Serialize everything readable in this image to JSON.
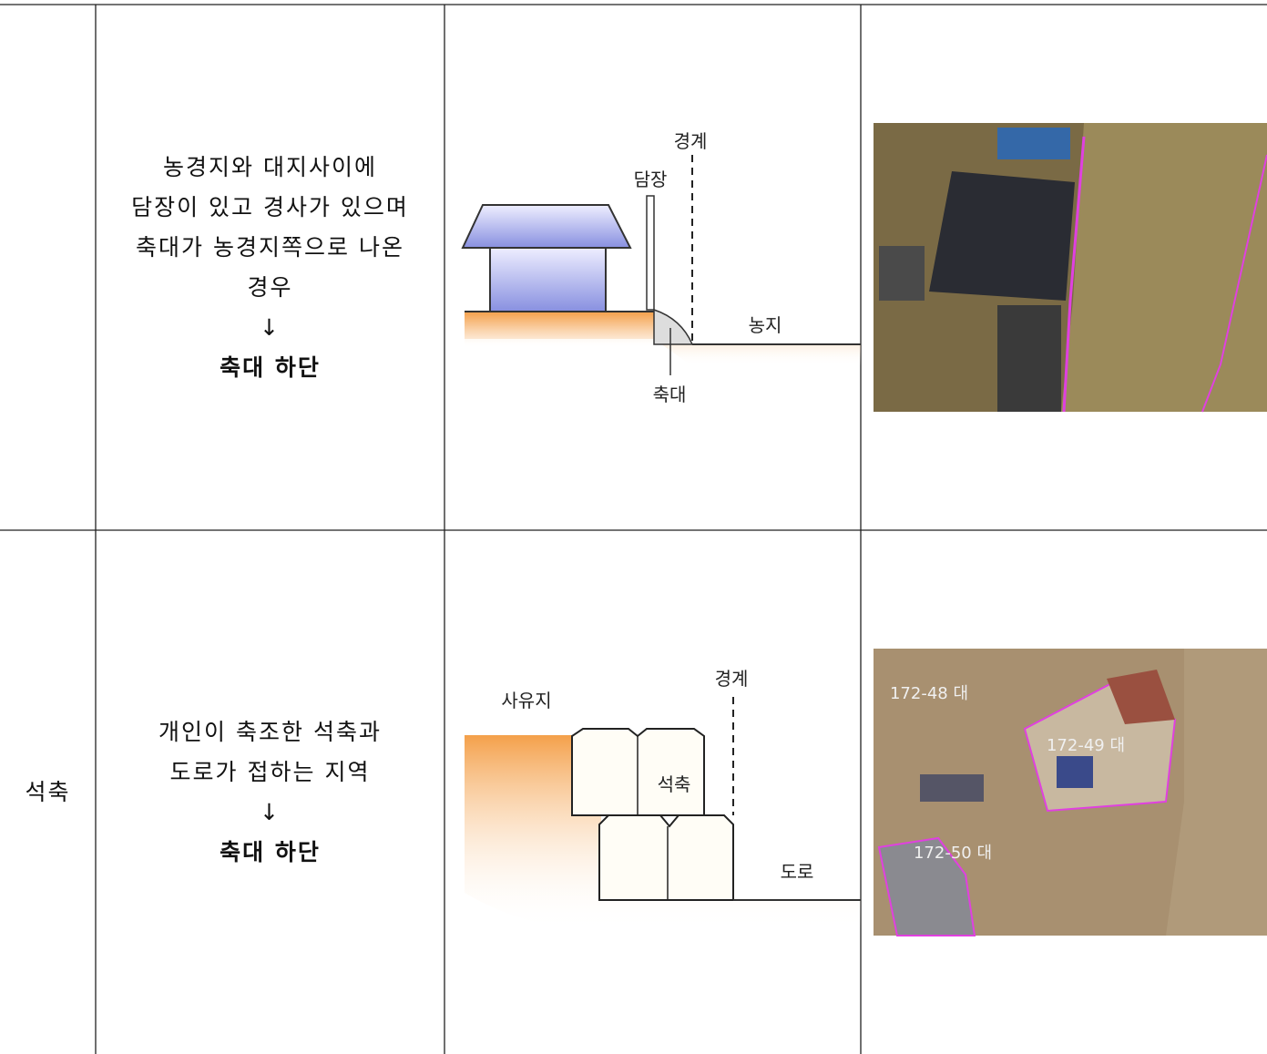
{
  "table": {
    "rows": [
      {
        "description": [
          "농경지와 대지사이에",
          "담장이 있고 경사가 있으며",
          "축대가 농경지쪽으로 나온",
          "경우"
        ],
        "arrow": "↓",
        "result": "축대 하단",
        "diagram": {
          "labels": [
            "경계",
            "담장",
            "농지",
            "축대"
          ]
        }
      },
      {
        "category": "석축",
        "description": [
          "개인이 축조한 석축과",
          "도로가 접하는 지역"
        ],
        "arrow": "↓",
        "result": "축대 하단",
        "diagram": {
          "labels": [
            "사유지",
            "경계",
            "석축",
            "도로"
          ]
        },
        "photo": {
          "labels": [
            "172-48 대",
            "172-49 대",
            "172-50 대"
          ]
        }
      }
    ]
  }
}
